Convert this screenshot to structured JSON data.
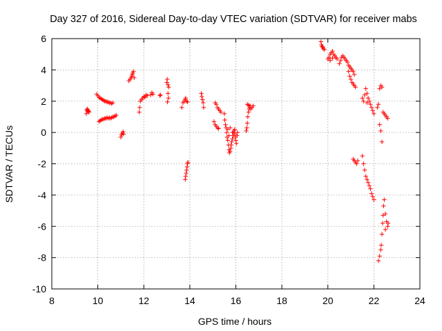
{
  "chart_data": {
    "type": "scatter",
    "title": "Day 327 of 2016, Sidereal Day-to-day VTEC variation (SDTVAR) for receiver mabs",
    "xlabel": "GPS time / hours",
    "ylabel": "SDTVAR / TECUs",
    "xlim": [
      8,
      24
    ],
    "ylim": [
      -10,
      6
    ],
    "xticks": [
      "8",
      "10",
      "12",
      "14",
      "16",
      "18",
      "20",
      "22",
      "24"
    ],
    "yticks": [
      "-10",
      "-8",
      "-6",
      "-4",
      "-2",
      "0",
      "2",
      "4",
      "6"
    ],
    "grid": true,
    "marker": "plus",
    "color": "#ff0000",
    "series": [
      {
        "name": "SDTVAR",
        "points": [
          [
            9.5,
            1.2
          ],
          [
            9.52,
            1.45
          ],
          [
            9.55,
            1.5
          ],
          [
            9.58,
            1.35
          ],
          [
            9.6,
            1.4
          ],
          [
            9.62,
            1.3
          ],
          [
            9.54,
            1.38
          ],
          [
            9.95,
            2.45
          ],
          [
            10.0,
            2.35
          ],
          [
            10.05,
            2.25
          ],
          [
            10.1,
            2.2
          ],
          [
            10.15,
            2.15
          ],
          [
            10.2,
            2.1
          ],
          [
            10.25,
            2.05
          ],
          [
            10.3,
            2.0
          ],
          [
            10.35,
            2.0
          ],
          [
            10.4,
            1.95
          ],
          [
            10.45,
            1.95
          ],
          [
            10.5,
            1.9
          ],
          [
            10.55,
            1.9
          ],
          [
            10.6,
            1.85
          ],
          [
            10.65,
            1.9
          ],
          [
            10.05,
            0.7
          ],
          [
            10.1,
            0.75
          ],
          [
            10.15,
            0.8
          ],
          [
            10.2,
            0.85
          ],
          [
            10.25,
            0.85
          ],
          [
            10.3,
            0.9
          ],
          [
            10.35,
            0.9
          ],
          [
            10.4,
            0.95
          ],
          [
            10.45,
            0.9
          ],
          [
            10.5,
            0.95
          ],
          [
            10.55,
            0.9
          ],
          [
            10.6,
            0.95
          ],
          [
            10.65,
            1.0
          ],
          [
            10.7,
            1.0
          ],
          [
            10.75,
            1.05
          ],
          [
            10.8,
            1.1
          ],
          [
            11.0,
            -0.3
          ],
          [
            11.03,
            -0.15
          ],
          [
            11.06,
            -0.05
          ],
          [
            11.1,
            0.05
          ],
          [
            11.12,
            -0.1
          ],
          [
            11.35,
            3.3
          ],
          [
            11.4,
            3.4
          ],
          [
            11.45,
            3.5
          ],
          [
            11.48,
            3.6
          ],
          [
            11.5,
            3.7
          ],
          [
            11.52,
            3.8
          ],
          [
            11.55,
            3.9
          ],
          [
            11.58,
            3.5
          ],
          [
            11.8,
            1.3
          ],
          [
            11.82,
            1.6
          ],
          [
            11.85,
            2.0
          ],
          [
            11.9,
            2.1
          ],
          [
            11.95,
            2.2
          ],
          [
            12.0,
            2.3
          ],
          [
            12.05,
            2.25
          ],
          [
            12.1,
            2.4
          ],
          [
            12.15,
            2.35
          ],
          [
            12.3,
            2.4
          ],
          [
            12.35,
            2.55
          ],
          [
            12.4,
            2.45
          ],
          [
            12.7,
            2.35
          ],
          [
            12.72,
            2.4
          ],
          [
            13.0,
            3.2
          ],
          [
            13.05,
            3.05
          ],
          [
            13.08,
            2.9
          ],
          [
            13.02,
            3.4
          ],
          [
            13.05,
            2.5
          ],
          [
            13.07,
            2.2
          ],
          [
            13.03,
            1.95
          ],
          [
            13.65,
            1.6
          ],
          [
            13.7,
            1.9
          ],
          [
            13.75,
            2.0
          ],
          [
            13.8,
            2.1
          ],
          [
            13.82,
            2.2
          ],
          [
            13.85,
            2.0
          ],
          [
            13.9,
            1.95
          ],
          [
            13.8,
            -3.0
          ],
          [
            13.82,
            -2.8
          ],
          [
            13.84,
            -2.6
          ],
          [
            13.86,
            -2.4
          ],
          [
            13.88,
            -2.2
          ],
          [
            13.9,
            -2.0
          ],
          [
            13.92,
            -1.9
          ],
          [
            14.5,
            2.5
          ],
          [
            14.52,
            2.3
          ],
          [
            14.55,
            2.1
          ],
          [
            14.58,
            1.9
          ],
          [
            14.6,
            1.6
          ],
          [
            15.05,
            0.7
          ],
          [
            15.1,
            0.5
          ],
          [
            15.15,
            0.4
          ],
          [
            15.2,
            0.3
          ],
          [
            15.25,
            0.25
          ],
          [
            15.1,
            1.9
          ],
          [
            15.15,
            1.8
          ],
          [
            15.2,
            1.6
          ],
          [
            15.25,
            1.5
          ],
          [
            15.3,
            1.4
          ],
          [
            15.35,
            1.3
          ],
          [
            15.5,
            1.2
          ],
          [
            15.52,
            0.8
          ],
          [
            15.55,
            0.5
          ],
          [
            15.58,
            0.3
          ],
          [
            15.6,
            0.0
          ],
          [
            15.62,
            -0.3
          ],
          [
            15.65,
            -0.5
          ],
          [
            15.68,
            -0.8
          ],
          [
            15.7,
            -1.1
          ],
          [
            15.72,
            -1.3
          ],
          [
            15.75,
            -1.2
          ],
          [
            15.78,
            -1.0
          ],
          [
            15.8,
            -0.8
          ],
          [
            15.82,
            -0.6
          ],
          [
            15.85,
            -0.4
          ],
          [
            15.88,
            -0.2
          ],
          [
            15.9,
            0.0
          ],
          [
            15.92,
            0.1
          ],
          [
            15.95,
            -0.1
          ],
          [
            15.98,
            -0.3
          ],
          [
            16.0,
            -0.5
          ],
          [
            16.02,
            -0.7
          ],
          [
            16.05,
            -0.2
          ],
          [
            16.07,
            0.0
          ],
          [
            15.65,
            0.2
          ],
          [
            15.7,
            -0.2
          ],
          [
            15.75,
            0.3
          ],
          [
            15.85,
            0.0
          ],
          [
            15.95,
            0.2
          ],
          [
            16.45,
            0.1
          ],
          [
            16.48,
            0.3
          ],
          [
            16.5,
            0.6
          ],
          [
            16.52,
            1.0
          ],
          [
            16.55,
            1.3
          ],
          [
            16.58,
            1.5
          ],
          [
            16.6,
            1.6
          ],
          [
            16.62,
            1.7
          ],
          [
            16.65,
            1.5
          ],
          [
            16.7,
            1.6
          ],
          [
            16.75,
            1.7
          ],
          [
            16.5,
            1.8
          ],
          [
            16.55,
            1.75
          ],
          [
            19.7,
            5.8
          ],
          [
            19.72,
            5.6
          ],
          [
            19.75,
            5.5
          ],
          [
            19.78,
            5.45
          ],
          [
            19.8,
            5.35
          ],
          [
            19.85,
            5.3
          ],
          [
            20.0,
            4.7
          ],
          [
            20.05,
            4.8
          ],
          [
            20.1,
            5.0
          ],
          [
            20.15,
            5.1
          ],
          [
            20.2,
            5.2
          ],
          [
            20.25,
            5.0
          ],
          [
            20.3,
            4.9
          ],
          [
            20.35,
            4.8
          ],
          [
            20.4,
            4.7
          ],
          [
            20.1,
            4.6
          ],
          [
            20.2,
            4.75
          ],
          [
            20.5,
            4.4
          ],
          [
            20.55,
            4.6
          ],
          [
            20.6,
            4.8
          ],
          [
            20.65,
            4.9
          ],
          [
            20.7,
            4.8
          ],
          [
            20.75,
            4.7
          ],
          [
            20.8,
            4.6
          ],
          [
            20.85,
            4.5
          ],
          [
            20.9,
            4.3
          ],
          [
            20.95,
            4.2
          ],
          [
            21.0,
            4.1
          ],
          [
            21.05,
            4.0
          ],
          [
            21.1,
            3.9
          ],
          [
            21.15,
            3.7
          ],
          [
            20.9,
            3.9
          ],
          [
            20.95,
            3.6
          ],
          [
            21.0,
            3.4
          ],
          [
            21.05,
            3.2
          ],
          [
            21.1,
            3.1
          ],
          [
            21.15,
            3.0
          ],
          [
            21.2,
            2.9
          ],
          [
            21.1,
            -1.7
          ],
          [
            21.15,
            -1.8
          ],
          [
            21.2,
            -1.9
          ],
          [
            21.25,
            -2.0
          ],
          [
            21.3,
            -1.8
          ],
          [
            21.5,
            -1.5
          ],
          [
            21.55,
            -2.0
          ],
          [
            21.6,
            -2.4
          ],
          [
            21.65,
            -2.8
          ],
          [
            21.7,
            -3.0
          ],
          [
            21.75,
            -3.2
          ],
          [
            21.8,
            -3.4
          ],
          [
            21.85,
            -3.6
          ],
          [
            21.9,
            -3.9
          ],
          [
            21.95,
            -4.1
          ],
          [
            22.0,
            -4.3
          ],
          [
            21.5,
            2.2
          ],
          [
            21.55,
            2.0
          ],
          [
            21.6,
            2.4
          ],
          [
            21.65,
            2.8
          ],
          [
            21.7,
            2.5
          ],
          [
            21.75,
            2.2
          ],
          [
            21.8,
            2.0
          ],
          [
            21.85,
            1.8
          ],
          [
            21.9,
            1.6
          ],
          [
            21.95,
            1.4
          ],
          [
            22.0,
            1.2
          ],
          [
            21.7,
            1.9
          ],
          [
            22.15,
            1.6
          ],
          [
            22.2,
            1.8
          ],
          [
            22.25,
            2.8
          ],
          [
            22.3,
            3.0
          ],
          [
            22.35,
            2.9
          ],
          [
            22.4,
            1.3
          ],
          [
            22.45,
            1.2
          ],
          [
            22.5,
            1.1
          ],
          [
            22.55,
            1.0
          ],
          [
            22.6,
            0.9
          ],
          [
            22.35,
            -0.6
          ],
          [
            22.3,
            0.1
          ],
          [
            22.25,
            0.5
          ],
          [
            22.2,
            -8.2
          ],
          [
            22.25,
            -7.9
          ],
          [
            22.3,
            -7.5
          ],
          [
            22.32,
            -7.2
          ],
          [
            22.35,
            -6.5
          ],
          [
            22.38,
            -5.8
          ],
          [
            22.4,
            -5.3
          ],
          [
            22.42,
            -4.7
          ],
          [
            22.45,
            -4.3
          ],
          [
            22.5,
            -5.2
          ],
          [
            22.55,
            -5.7
          ],
          [
            22.6,
            -6.0
          ],
          [
            22.62,
            -5.8
          ],
          [
            22.5,
            -6.2
          ]
        ]
      }
    ]
  }
}
